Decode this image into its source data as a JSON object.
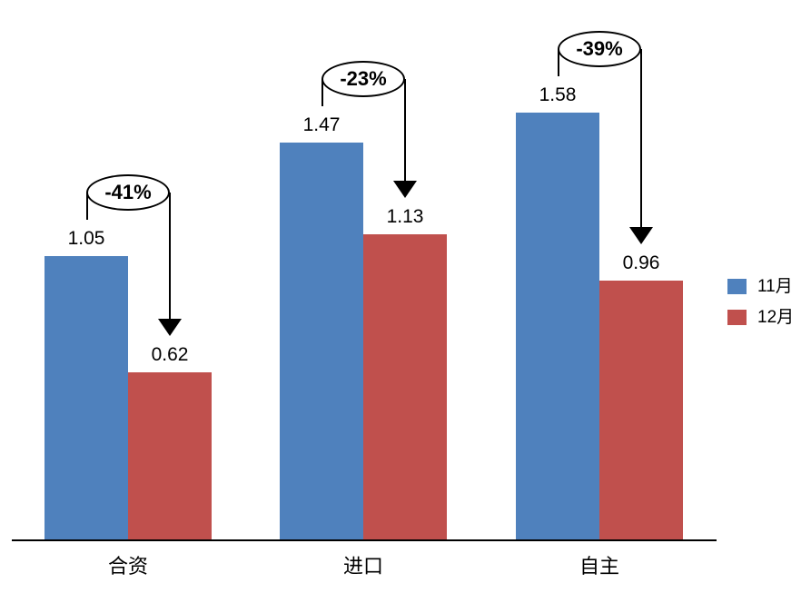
{
  "chart_data": {
    "type": "bar",
    "title": "",
    "xlabel": "",
    "ylabel": "",
    "categories": [
      "合资",
      "进口",
      "自主"
    ],
    "series": [
      {
        "name": "11月",
        "color": "#4F81BD",
        "values": [
          1.05,
          1.47,
          1.58
        ],
        "labels": [
          "1.05",
          "1.47",
          "1.58"
        ]
      },
      {
        "name": "12月",
        "color": "#C0504D",
        "values": [
          0.62,
          1.13,
          0.96
        ],
        "labels": [
          "0.62",
          "1.13",
          "0.96"
        ]
      }
    ],
    "annotations": [
      {
        "category": "合资",
        "label": "-41%"
      },
      {
        "category": "进口",
        "label": "-23%"
      },
      {
        "category": "自主",
        "label": "-39%"
      }
    ],
    "ylim": [
      0,
      2.0
    ],
    "grid": false,
    "y_axis_visible": false,
    "legend_position": "right",
    "axis_line_color": "#000000"
  },
  "legend": {
    "items": [
      {
        "label": "11月",
        "color": "#4F81BD"
      },
      {
        "label": "12月",
        "color": "#C0504D"
      }
    ]
  }
}
